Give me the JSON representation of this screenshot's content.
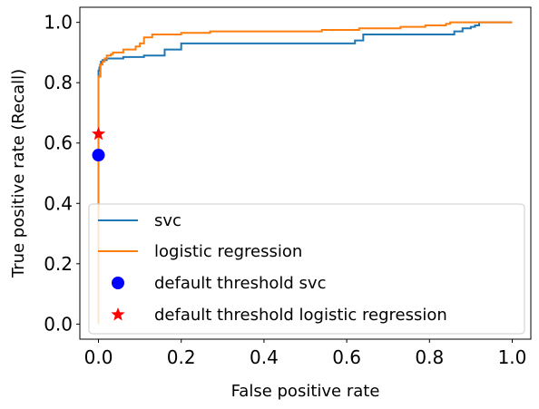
{
  "chart_data": {
    "type": "line",
    "title": "",
    "xlabel": "False positive rate",
    "ylabel": "True positive rate (Recall)",
    "xlim": [
      -0.045,
      1.045
    ],
    "ylim": [
      -0.05,
      1.05
    ],
    "xticks": [
      0.0,
      0.2,
      0.4,
      0.6,
      0.8,
      1.0
    ],
    "xtick_labels": [
      "0.0",
      "0.2",
      "0.4",
      "0.6",
      "0.8",
      "1.0"
    ],
    "yticks": [
      0.0,
      0.2,
      0.4,
      0.6,
      0.8,
      1.0
    ],
    "ytick_labels": [
      "0.0",
      "0.2",
      "0.4",
      "0.6",
      "0.8",
      "1.0"
    ],
    "grid": false,
    "legend_position": "bottom-right",
    "series": [
      {
        "name": "svc",
        "kind": "line",
        "color": "#1f77b4",
        "x": [
          0.0,
          0.0,
          0.002,
          0.002,
          0.004,
          0.004,
          0.006,
          0.006,
          0.01,
          0.01,
          0.02,
          0.02,
          0.03,
          0.03,
          0.06,
          0.06,
          0.11,
          0.11,
          0.16,
          0.16,
          0.2,
          0.2,
          0.62,
          0.62,
          0.64,
          0.64,
          0.86,
          0.86,
          0.88,
          0.88,
          0.9,
          0.9,
          0.91,
          0.91,
          0.92,
          0.92,
          1.0
        ],
        "y": [
          0.0,
          0.84,
          0.84,
          0.85,
          0.85,
          0.86,
          0.86,
          0.87,
          0.87,
          0.875,
          0.875,
          0.88,
          0.88,
          0.88,
          0.88,
          0.885,
          0.885,
          0.89,
          0.89,
          0.91,
          0.91,
          0.93,
          0.93,
          0.94,
          0.94,
          0.96,
          0.96,
          0.97,
          0.97,
          0.98,
          0.98,
          0.985,
          0.985,
          0.99,
          0.99,
          1.0,
          1.0
        ]
      },
      {
        "name": "logistic regression",
        "kind": "line",
        "color": "#ff7f0e",
        "x": [
          0.0,
          0.0,
          0.005,
          0.005,
          0.01,
          0.01,
          0.015,
          0.015,
          0.02,
          0.02,
          0.03,
          0.03,
          0.035,
          0.035,
          0.06,
          0.06,
          0.09,
          0.09,
          0.1,
          0.1,
          0.11,
          0.11,
          0.13,
          0.13,
          0.2,
          0.2,
          0.27,
          0.27,
          0.54,
          0.54,
          0.63,
          0.63,
          0.73,
          0.73,
          0.79,
          0.79,
          0.84,
          0.84,
          0.85,
          0.85,
          1.0
        ],
        "y": [
          0.0,
          0.82,
          0.82,
          0.86,
          0.86,
          0.87,
          0.87,
          0.88,
          0.88,
          0.89,
          0.89,
          0.895,
          0.895,
          0.9,
          0.9,
          0.91,
          0.91,
          0.92,
          0.92,
          0.93,
          0.93,
          0.95,
          0.95,
          0.96,
          0.96,
          0.965,
          0.965,
          0.97,
          0.97,
          0.975,
          0.975,
          0.98,
          0.98,
          0.985,
          0.985,
          0.99,
          0.99,
          0.995,
          0.995,
          1.0,
          1.0
        ]
      }
    ],
    "markers": [
      {
        "name": "default threshold svc",
        "shape": "circle",
        "color": "#0000ff",
        "x": 0.0,
        "y": 0.56
      },
      {
        "name": "default threshold logistic regression",
        "shape": "star",
        "color": "#ff0000",
        "x": 0.0,
        "y": 0.63
      }
    ]
  }
}
